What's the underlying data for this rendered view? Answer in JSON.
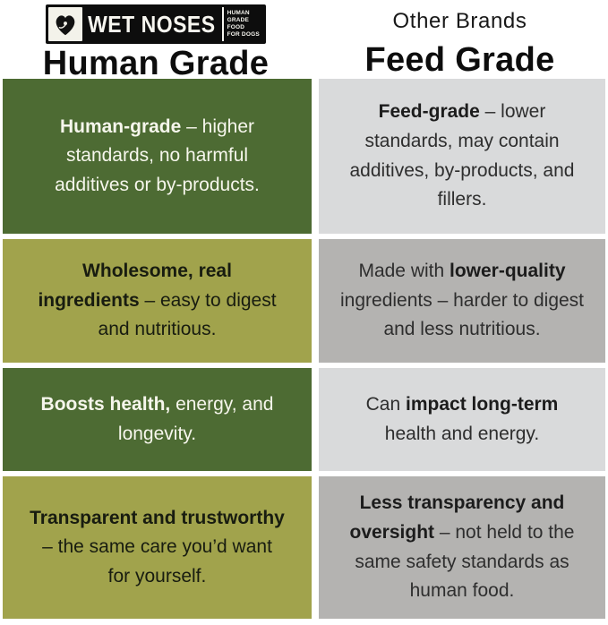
{
  "header": {
    "left": {
      "logo": {
        "brand": "WET NOSES",
        "dog_icon": "dog-face-icon",
        "tagline_lines": [
          "HUMAN",
          "GRADE",
          "FOOD",
          "FOR DOGS"
        ]
      },
      "title": "Human Grade"
    },
    "right": {
      "subtitle": "Other Brands",
      "title": "Feed Grade"
    }
  },
  "colors": {
    "dark_green": "#4d6b33",
    "olive_green": "#a1a34c",
    "light_gray": "#d9dadb",
    "mid_gray": "#b4b3b1",
    "logo_black": "#0d0d0d"
  },
  "table": {
    "columns": [
      "Human Grade",
      "Feed Grade"
    ],
    "rows": [
      {
        "left": {
          "segments": [
            {
              "text": "Human-grade",
              "bold": true
            },
            {
              "text": " – higher standards, no harmful additives or by-products.",
              "bold": false
            }
          ]
        },
        "right": {
          "segments": [
            {
              "text": "Feed-grade",
              "bold": true
            },
            {
              "text": " – lower standards, may contain additives, by-products, and fillers.",
              "bold": false
            }
          ]
        }
      },
      {
        "left": {
          "segments": [
            {
              "text": "Wholesome, real ingredients",
              "bold": true
            },
            {
              "text": " – easy to digest and nutritious.",
              "bold": false
            }
          ]
        },
        "right": {
          "segments": [
            {
              "text": "Made with ",
              "bold": false
            },
            {
              "text": "lower-quality",
              "bold": true
            },
            {
              "text": " ingredients – harder to digest and less nutritious.",
              "bold": false
            }
          ]
        }
      },
      {
        "left": {
          "segments": [
            {
              "text": "Boosts health,",
              "bold": true
            },
            {
              "text": " energy, and longevity.",
              "bold": false
            }
          ]
        },
        "right": {
          "segments": [
            {
              "text": "Can ",
              "bold": false
            },
            {
              "text": "impact long-term",
              "bold": true
            },
            {
              "text": " health and energy.",
              "bold": false
            }
          ]
        }
      },
      {
        "left": {
          "segments": [
            {
              "text": "Transparent and trustworthy",
              "bold": true
            },
            {
              "text": " – the same care you’d want for yourself.",
              "bold": false
            }
          ]
        },
        "right": {
          "segments": [
            {
              "text": "Less transparency and oversight",
              "bold": true
            },
            {
              "text": " – not held to the same safety standards as human food.",
              "bold": false
            }
          ]
        }
      }
    ]
  }
}
